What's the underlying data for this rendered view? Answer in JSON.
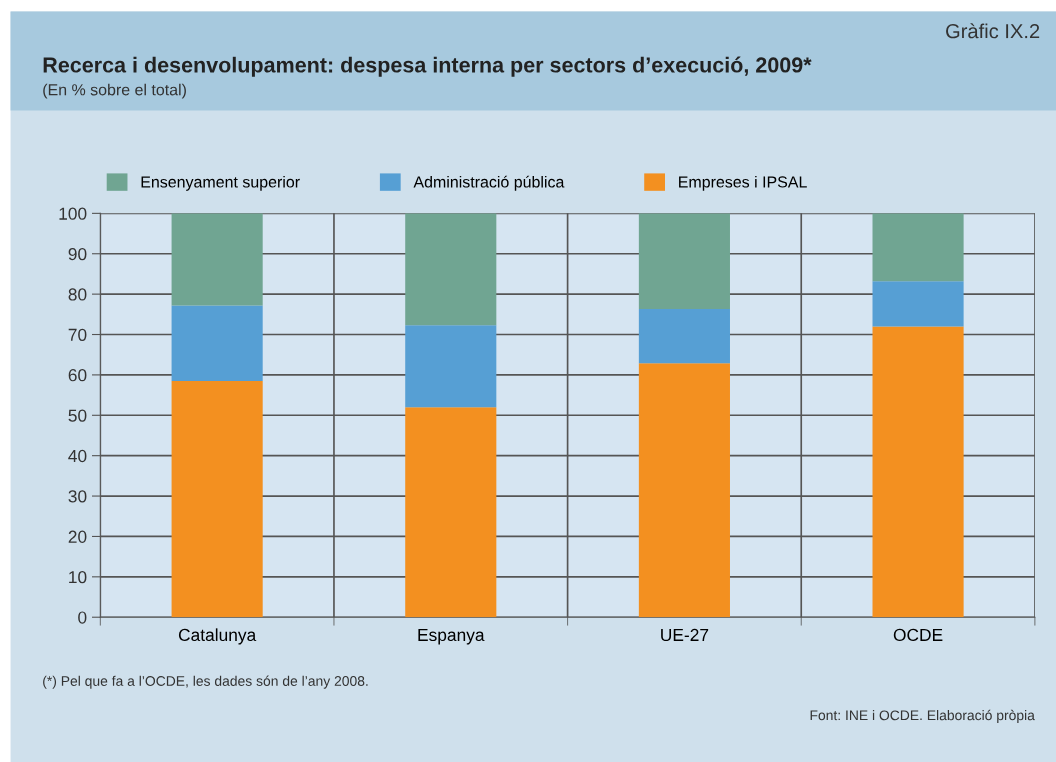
{
  "chart_data": {
    "type": "bar",
    "stacked": true,
    "title": "Recerca i desenvolupament: despesa interna per sectors d’execució, 2009*",
    "subtitle": "(En % sobre el total)",
    "categories": [
      "Catalunya",
      "Espanya",
      "UE-27",
      "OCDE"
    ],
    "series": [
      {
        "name": "Empreses i IPSAL",
        "color": "#f39020",
        "values": [
          58.5,
          52.0,
          62.9,
          72.0
        ]
      },
      {
        "name": "Administració pública",
        "color": "#569fd4",
        "values": [
          18.7,
          20.3,
          13.4,
          11.2
        ]
      },
      {
        "name": "Ensenyament superior",
        "color": "#70a592",
        "values": [
          22.8,
          27.7,
          23.7,
          16.8
        ]
      }
    ],
    "ylim": [
      0,
      100
    ],
    "yticks": [
      0,
      10,
      20,
      30,
      40,
      50,
      60,
      70,
      80,
      90,
      100
    ],
    "grid": true,
    "legend": "top",
    "annotations": [
      "Gràfic IX.2",
      "(*) Pel que fa a l’OCDE, les dades són de l’any 2008.",
      "Font: INE i OCDE. Elaboració pròpia"
    ]
  }
}
